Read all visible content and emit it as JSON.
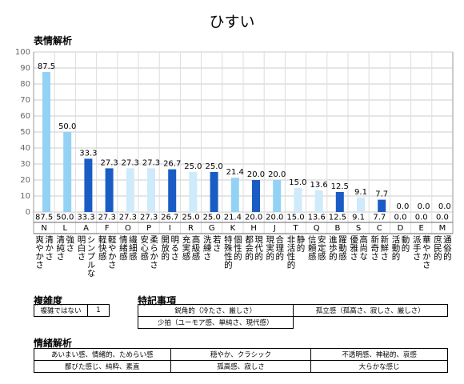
{
  "title": "ひすい",
  "sections": {
    "expression": "表情解析",
    "complexity": "複雑度",
    "notes": "特記事項",
    "emotion": "情緒解析"
  },
  "chart_data": {
    "type": "bar",
    "categories": [
      "N",
      "L",
      "A",
      "F",
      "O",
      "P",
      "I",
      "R",
      "G",
      "K",
      "H",
      "J",
      "T",
      "Q",
      "B",
      "S",
      "C",
      "D",
      "E",
      "M"
    ],
    "descriptions": [
      [
        "清かさ",
        "爽やかさ"
      ],
      [
        "強さ",
        "清純さ"
      ],
      [
        "シンプルな",
        "明白さ"
      ],
      [
        "軽やかさ",
        "軽快感"
      ],
      [
        "繊細感",
        "情緒感"
      ],
      [
        "柔らかさ",
        "安心感"
      ],
      [
        "明るさ",
        "開放的"
      ],
      [
        "高級感",
        "充実感"
      ],
      [
        "若さ",
        "洗練さ"
      ],
      [
        "個性的",
        "特殊性的"
      ],
      [
        "現代的",
        "都会的"
      ],
      [
        "合理的",
        "現実的"
      ],
      [
        "静的",
        "非活性的"
      ],
      [
        "安定感",
        "信頼感"
      ],
      [
        "躍動感",
        "進歩的"
      ],
      [
        "高尚な",
        "優雅さ"
      ],
      [
        "新鮮さ",
        "新奇さ"
      ],
      [
        "動的",
        "活動的"
      ],
      [
        "華やかさ",
        "派手さ"
      ],
      [
        "通俗的",
        "庶民的"
      ]
    ],
    "values": [
      87.5,
      50,
      33.3,
      27.3,
      27.3,
      27.3,
      26.7,
      25,
      25,
      21.4,
      20,
      20,
      15,
      13.6,
      12.5,
      9.1,
      7.7,
      0,
      0,
      0
    ],
    "value_labels": [
      "87.5",
      "50.0",
      "33.3",
      "27.3",
      "27.3",
      "27.3",
      "26.7",
      "25.0",
      "25.0",
      "21.4",
      "20.0",
      "20.0",
      "15.0",
      "13.6",
      "12.5",
      "9.1",
      "7.7",
      "0.0",
      "0.0",
      "0.0"
    ],
    "colors": [
      "#93d2f4",
      "#93d2f4",
      "#1a5cc4",
      "#1a5cc4",
      "#cfeafa",
      "#cfeafa",
      "#1a5cc4",
      "#cfeafa",
      "#1a5cc4",
      "#93d2f4",
      "#1a5cc4",
      "#93d2f4",
      "#cfeafa",
      "#cfeafa",
      "#1a5cc4",
      "#cfeafa",
      "#1a5cc4",
      "#cfeafa",
      "#cfeafa",
      "#cfeafa"
    ],
    "ylim": [
      0,
      100
    ],
    "yticks": [
      0,
      10,
      20,
      30,
      40,
      50,
      60,
      70,
      80,
      90,
      100
    ],
    "grid": true
  },
  "complexity": {
    "rows": [
      [
        "複雑ではない",
        "1"
      ]
    ]
  },
  "notes": {
    "rows": [
      [
        "鋭角的（冷たさ、厳しさ）",
        "孤立感（孤高さ、寂しさ、厳しさ）"
      ],
      [
        "少拍（ユーモア感、単純さ、現代感）"
      ]
    ]
  },
  "emotion": {
    "rows": [
      [
        "あいまい感、情緒的、ためらい感",
        "穏やか、クラシック",
        "不透明感、神秘的、哀感"
      ],
      [
        "鄙びた感じ、純粋、素直",
        "孤高感、寂しさ",
        "大らかな感じ"
      ]
    ]
  }
}
